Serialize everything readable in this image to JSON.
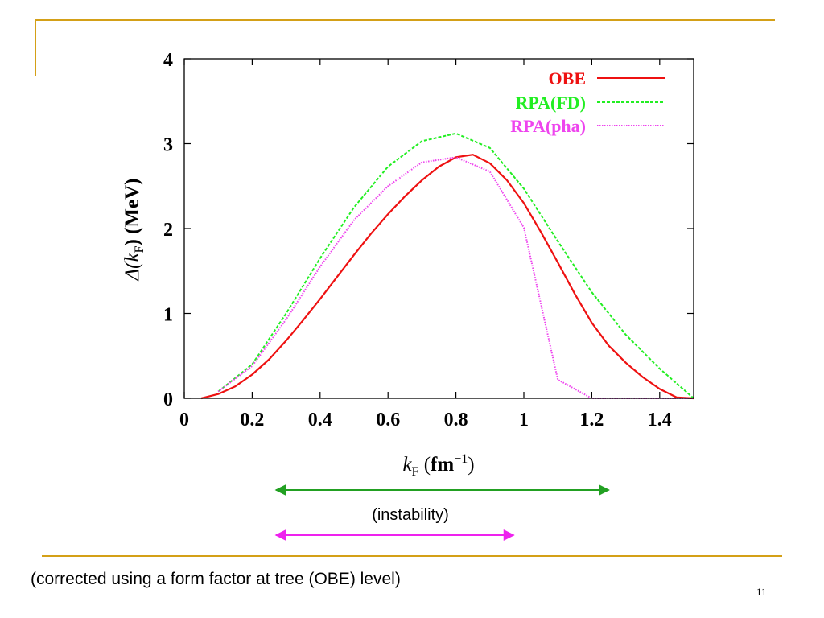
{
  "slide": {
    "footer_note": "(corrected using a form factor at tree (OBE) level)",
    "page_number": "11",
    "accent_color": "#d4a017"
  },
  "annotations": {
    "instability_label": "(instability)",
    "green_range_color": "#22a022",
    "magenta_range_color": "#ee22ee",
    "green_range_kf": [
      0.27,
      1.25
    ],
    "magenta_range_kf": [
      0.27,
      0.97
    ]
  },
  "chart_data": {
    "type": "line",
    "xlim": [
      0,
      1.5
    ],
    "ylim": [
      0,
      4
    ],
    "x_ticks": [
      0,
      0.2,
      0.4,
      0.6,
      0.8,
      1,
      1.2,
      1.4
    ],
    "x_tick_labels": [
      "0",
      "0.2",
      "0.4",
      "0.6",
      "0.8",
      "1",
      "1.2",
      "1.4"
    ],
    "y_ticks": [
      0,
      1,
      2,
      3,
      4
    ],
    "y_tick_labels": [
      "0",
      "1",
      "2",
      "3",
      "4"
    ],
    "xlabel": {
      "k": "k",
      "sub": "F",
      "unit": "fm",
      "sup": "−1",
      "open": " (",
      "close": ")"
    },
    "ylabel": {
      "delta": "Δ(",
      "k": "k",
      "sub": "F",
      "rest": ") (MeV)"
    },
    "grid": false,
    "legend_position": "top-right",
    "series": [
      {
        "name": "OBE",
        "color": "#ee1111",
        "style": "solid",
        "x": [
          0.05,
          0.1,
          0.15,
          0.2,
          0.25,
          0.3,
          0.35,
          0.4,
          0.45,
          0.5,
          0.55,
          0.6,
          0.65,
          0.7,
          0.75,
          0.8,
          0.85,
          0.9,
          0.95,
          1.0,
          1.05,
          1.1,
          1.15,
          1.2,
          1.25,
          1.3,
          1.35,
          1.4,
          1.45,
          1.5
        ],
        "y": [
          0.0,
          0.05,
          0.14,
          0.28,
          0.46,
          0.68,
          0.92,
          1.17,
          1.43,
          1.69,
          1.94,
          2.17,
          2.38,
          2.57,
          2.73,
          2.84,
          2.87,
          2.77,
          2.57,
          2.3,
          1.96,
          1.6,
          1.23,
          0.89,
          0.62,
          0.42,
          0.25,
          0.11,
          0.01,
          0.0
        ]
      },
      {
        "name": "RPA(FD)",
        "color": "#22ee22",
        "style": "dashed",
        "x": [
          0.1,
          0.2,
          0.3,
          0.4,
          0.5,
          0.6,
          0.7,
          0.8,
          0.9,
          1.0,
          1.1,
          1.2,
          1.3,
          1.4,
          1.5
        ],
        "y": [
          0.08,
          0.4,
          1.0,
          1.65,
          2.25,
          2.73,
          3.03,
          3.12,
          2.95,
          2.47,
          1.85,
          1.25,
          0.75,
          0.35,
          0.0
        ]
      },
      {
        "name": "RPA(pha)",
        "color": "#ee44ee",
        "style": "dotted",
        "x": [
          0.1,
          0.2,
          0.3,
          0.4,
          0.5,
          0.6,
          0.7,
          0.8,
          0.9,
          1.0,
          1.1,
          1.2,
          1.3,
          1.4,
          1.5
        ],
        "y": [
          0.08,
          0.38,
          0.93,
          1.55,
          2.1,
          2.5,
          2.78,
          2.84,
          2.67,
          2.01,
          0.22,
          0.0,
          0.0,
          0.0,
          0.0
        ]
      }
    ]
  }
}
